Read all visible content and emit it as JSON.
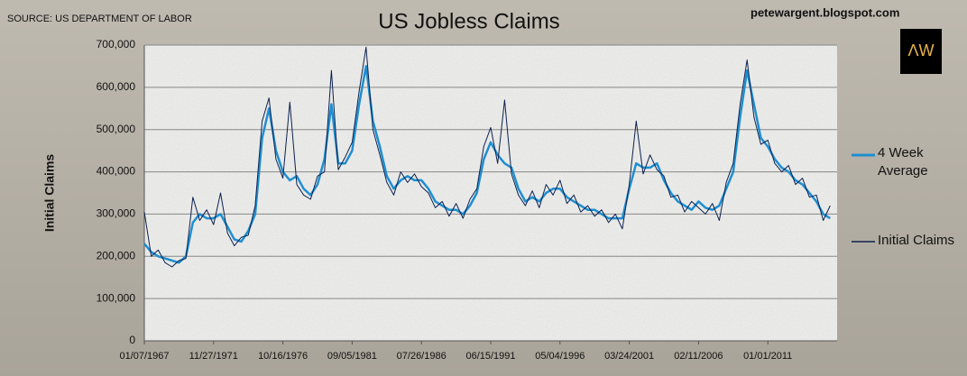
{
  "chart_data": {
    "type": "line",
    "title": "US Jobless Claims",
    "source": "SOURCE: US DEPARTMENT OF LABOR",
    "website": "petewargent.blogspot.com",
    "logo": "ΛW",
    "y_label": "Initial Claims",
    "categories": [
      "01/07/1967",
      null,
      null,
      null,
      null,
      null,
      null,
      null,
      null,
      null,
      "11/27/1971",
      null,
      null,
      null,
      null,
      null,
      null,
      null,
      null,
      null,
      "10/16/1976",
      null,
      null,
      null,
      null,
      null,
      null,
      null,
      null,
      null,
      "09/05/1981",
      null,
      null,
      null,
      null,
      null,
      null,
      null,
      null,
      null,
      "07/26/1986",
      null,
      null,
      null,
      null,
      null,
      null,
      null,
      null,
      null,
      "06/15/1991",
      null,
      null,
      null,
      null,
      null,
      null,
      null,
      null,
      null,
      "05/04/1996",
      null,
      null,
      null,
      null,
      null,
      null,
      null,
      null,
      null,
      "03/24/2001",
      null,
      null,
      null,
      null,
      null,
      null,
      null,
      null,
      null,
      "02/11/2006",
      null,
      null,
      null,
      null,
      null,
      null,
      null,
      null,
      null,
      "01/01/2011",
      null,
      null,
      null,
      null,
      null,
      null,
      null,
      null,
      null
    ],
    "series": [
      {
        "name": "4 Week Average",
        "color": "#1e8fd0",
        "values": [
          230000,
          210000,
          200000,
          195000,
          190000,
          185000,
          200000,
          280000,
          300000,
          290000,
          290000,
          300000,
          270000,
          240000,
          235000,
          260000,
          300000,
          480000,
          550000,
          450000,
          400000,
          380000,
          390000,
          360000,
          345000,
          370000,
          430000,
          560000,
          420000,
          420000,
          450000,
          560000,
          650000,
          520000,
          460000,
          390000,
          360000,
          380000,
          390000,
          380000,
          380000,
          360000,
          330000,
          320000,
          310000,
          310000,
          300000,
          320000,
          350000,
          430000,
          470000,
          440000,
          420000,
          410000,
          360000,
          330000,
          340000,
          330000,
          350000,
          360000,
          360000,
          340000,
          330000,
          320000,
          310000,
          310000,
          300000,
          290000,
          290000,
          290000,
          360000,
          420000,
          410000,
          410000,
          420000,
          380000,
          350000,
          330000,
          320000,
          310000,
          330000,
          315000,
          310000,
          320000,
          360000,
          400000,
          530000,
          640000,
          560000,
          480000,
          460000,
          430000,
          410000,
          400000,
          380000,
          370000,
          350000,
          330000,
          300000,
          290000
        ]
      },
      {
        "name": "Initial Claims",
        "color": "#0d2150",
        "values": [
          305000,
          200000,
          215000,
          185000,
          175000,
          190000,
          195000,
          340000,
          285000,
          310000,
          275000,
          350000,
          255000,
          225000,
          245000,
          250000,
          320000,
          520000,
          575000,
          430000,
          385000,
          565000,
          370000,
          345000,
          335000,
          390000,
          400000,
          640000,
          405000,
          435000,
          470000,
          590000,
          695000,
          500000,
          440000,
          375000,
          345000,
          400000,
          375000,
          395000,
          365000,
          350000,
          315000,
          330000,
          295000,
          325000,
          290000,
          335000,
          360000,
          460000,
          505000,
          420000,
          570000,
          395000,
          345000,
          320000,
          355000,
          315000,
          370000,
          345000,
          380000,
          325000,
          345000,
          305000,
          320000,
          295000,
          310000,
          280000,
          300000,
          265000,
          370000,
          520000,
          395000,
          440000,
          405000,
          390000,
          340000,
          345000,
          305000,
          330000,
          315000,
          300000,
          325000,
          285000,
          375000,
          420000,
          560000,
          665000,
          530000,
          465000,
          475000,
          420000,
          400000,
          415000,
          370000,
          385000,
          340000,
          345000,
          285000,
          320000
        ]
      }
    ],
    "ylim": [
      0,
      700000
    ],
    "yticks": [
      0,
      {
        "value": 100000,
        "label": "100,000"
      },
      {
        "value": 200000,
        "label": "200,000"
      },
      {
        "value": 300000,
        "label": "300,000"
      },
      {
        "value": 400000,
        "label": "400,000"
      },
      {
        "value": 500000,
        "label": "500,000"
      },
      {
        "value": 600000,
        "label": "600,000"
      },
      {
        "value": 700000,
        "label": "700,000"
      }
    ],
    "grid": true,
    "legend": "right"
  }
}
